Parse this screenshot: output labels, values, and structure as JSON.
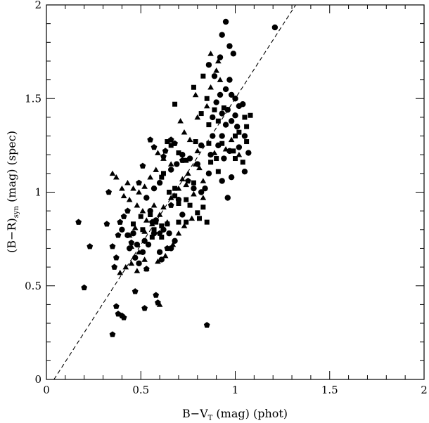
{
  "chart_data": {
    "type": "scatter",
    "xlabel": "B−V",
    "xlabel_sub": "T",
    "xlabel_rest": " (mag) (phot)",
    "ylabel": "(B−R)",
    "ylabel_sub": "syn",
    "ylabel_rest": " (mag) (spec)",
    "xlim": [
      0,
      2
    ],
    "ylim": [
      0,
      2
    ],
    "xticks": [
      0,
      0.5,
      1,
      1.5,
      2
    ],
    "xtick_labels": [
      "0",
      "0.5",
      "1",
      "1.5",
      "2"
    ],
    "yticks": [
      0,
      0.5,
      1,
      1.5,
      2
    ],
    "ytick_labels": [
      "0",
      "0.5",
      "1",
      "1.5",
      "2"
    ],
    "grid": false,
    "legend": "none",
    "fit_line": {
      "x": [
        0.04,
        1.32
      ],
      "y": [
        0.0,
        2.0
      ],
      "style": "dashed"
    },
    "series": [
      {
        "marker": "circle",
        "points": [
          [
            0.95,
            1.91
          ],
          [
            0.93,
            1.84
          ],
          [
            0.97,
            1.78
          ],
          [
            1.21,
            1.88
          ],
          [
            0.99,
            1.74
          ],
          [
            0.92,
            1.72
          ],
          [
            0.86,
            1.68
          ],
          [
            0.89,
            1.62
          ],
          [
            0.97,
            1.6
          ],
          [
            0.95,
            1.55
          ],
          [
            0.98,
            1.52
          ],
          [
            1.0,
            1.5
          ],
          [
            0.92,
            1.52
          ],
          [
            0.9,
            1.48
          ],
          [
            1.02,
            1.46
          ],
          [
            0.96,
            1.44
          ],
          [
            0.93,
            1.42
          ],
          [
            1.0,
            1.41
          ],
          [
            0.98,
            1.38
          ],
          [
            1.04,
            1.47
          ],
          [
            0.88,
            1.4
          ],
          [
            0.95,
            1.36
          ],
          [
            1.01,
            1.35
          ],
          [
            0.93,
            1.3
          ],
          [
            1.05,
            1.3
          ],
          [
            0.91,
            1.25
          ],
          [
            0.97,
            1.22
          ],
          [
            1.02,
            1.24
          ],
          [
            0.87,
            1.2
          ],
          [
            0.94,
            1.18
          ],
          [
            1.07,
            1.21
          ],
          [
            1.05,
            1.11
          ],
          [
            0.98,
            1.08
          ],
          [
            0.93,
            1.06
          ],
          [
            0.86,
            1.1
          ],
          [
            0.84,
            1.02
          ],
          [
            0.8,
            1.15
          ],
          [
            0.76,
            1.18
          ],
          [
            0.72,
            1.2
          ],
          [
            0.69,
            1.15
          ],
          [
            0.66,
            1.12
          ],
          [
            0.6,
            1.05
          ],
          [
            0.57,
            1.02
          ],
          [
            0.53,
            0.97
          ],
          [
            0.55,
            0.9
          ],
          [
            0.58,
            0.85
          ],
          [
            0.62,
            0.8
          ],
          [
            0.65,
            0.78
          ],
          [
            0.68,
            0.74
          ],
          [
            0.57,
            0.78
          ],
          [
            0.52,
            0.74
          ],
          [
            0.48,
            0.72
          ],
          [
            0.46,
            0.78
          ],
          [
            0.43,
            0.77
          ],
          [
            0.4,
            0.8
          ],
          [
            0.44,
            0.7
          ],
          [
            0.47,
            0.65
          ],
          [
            0.49,
            0.62
          ],
          [
            0.51,
            0.68
          ],
          [
            0.54,
            0.72
          ],
          [
            0.6,
            0.68
          ],
          [
            0.61,
            0.64
          ],
          [
            0.66,
            0.7
          ],
          [
            0.72,
            0.88
          ],
          [
            0.78,
            1.02
          ],
          [
            0.82,
            1.25
          ],
          [
            0.88,
            1.3
          ],
          [
            0.96,
            0.97
          ],
          [
            0.82,
            1.0
          ],
          [
            0.7,
            0.96
          ]
        ]
      },
      {
        "marker": "square",
        "points": [
          [
            0.83,
            1.62
          ],
          [
            0.85,
            1.5
          ],
          [
            0.78,
            1.56
          ],
          [
            0.82,
            1.42
          ],
          [
            0.68,
            1.47
          ],
          [
            0.89,
            1.44
          ],
          [
            0.86,
            1.36
          ],
          [
            0.91,
            1.38
          ],
          [
            1.0,
            1.3
          ],
          [
            1.02,
            1.32
          ],
          [
            0.94,
            1.45
          ],
          [
            1.08,
            1.41
          ],
          [
            1.05,
            1.4
          ],
          [
            0.93,
            1.26
          ],
          [
            0.99,
            1.22
          ],
          [
            0.9,
            1.18
          ],
          [
            0.86,
            1.26
          ],
          [
            0.79,
            1.27
          ],
          [
            0.74,
            1.17
          ],
          [
            0.7,
            1.21
          ],
          [
            0.66,
            1.25
          ],
          [
            0.64,
            1.27
          ],
          [
            0.62,
            1.1
          ],
          [
            0.61,
            1.08
          ],
          [
            0.65,
            1.0
          ],
          [
            0.68,
            1.02
          ],
          [
            0.7,
            0.94
          ],
          [
            0.74,
            0.96
          ],
          [
            0.76,
            0.93
          ],
          [
            0.8,
            0.89
          ],
          [
            0.83,
            0.92
          ],
          [
            0.85,
            0.84
          ],
          [
            0.81,
            0.86
          ],
          [
            0.74,
            0.84
          ],
          [
            0.7,
            0.84
          ],
          [
            0.64,
            0.83
          ],
          [
            0.61,
            0.82
          ],
          [
            0.58,
            0.84
          ],
          [
            0.55,
            0.88
          ],
          [
            0.5,
            0.87
          ],
          [
            0.46,
            0.83
          ],
          [
            0.51,
            0.8
          ],
          [
            0.57,
            0.8
          ],
          [
            0.61,
            0.76
          ],
          [
            0.56,
            0.76
          ],
          [
            0.68,
            0.98
          ],
          [
            0.78,
            1.05
          ],
          [
            0.87,
            1.16
          ],
          [
            0.91,
            1.11
          ],
          [
            1.04,
            1.16
          ],
          [
            1.0,
            1.18
          ],
          [
            1.06,
            1.27
          ],
          [
            1.06,
            1.35
          ]
        ]
      },
      {
        "marker": "triangle",
        "points": [
          [
            0.87,
            1.74
          ],
          [
            0.91,
            1.7
          ],
          [
            0.9,
            1.65
          ],
          [
            0.87,
            1.56
          ],
          [
            0.92,
            1.6
          ],
          [
            0.79,
            1.52
          ],
          [
            0.85,
            1.46
          ],
          [
            0.8,
            1.4
          ],
          [
            0.71,
            1.38
          ],
          [
            0.73,
            1.32
          ],
          [
            0.76,
            1.28
          ],
          [
            0.8,
            1.22
          ],
          [
            0.75,
            1.1
          ],
          [
            0.79,
            1.15
          ],
          [
            0.83,
            1.06
          ],
          [
            0.81,
            1.13
          ],
          [
            0.72,
            1.07
          ],
          [
            0.66,
            1.15
          ],
          [
            0.62,
            1.18
          ],
          [
            0.59,
            1.21
          ],
          [
            0.58,
            1.12
          ],
          [
            0.55,
            1.08
          ],
          [
            0.52,
            1.03
          ],
          [
            0.49,
            1.0
          ],
          [
            0.46,
            1.02
          ],
          [
            0.43,
            1.05
          ],
          [
            0.4,
            1.02
          ],
          [
            0.37,
            1.08
          ],
          [
            0.35,
            1.1
          ],
          [
            0.41,
            0.98
          ],
          [
            0.44,
            0.96
          ],
          [
            0.48,
            0.93
          ],
          [
            0.51,
            0.9
          ],
          [
            0.53,
            0.85
          ],
          [
            0.57,
            0.93
          ],
          [
            0.62,
            0.92
          ],
          [
            0.66,
            0.97
          ],
          [
            0.7,
            1.02
          ],
          [
            0.74,
            1.04
          ],
          [
            0.78,
            0.99
          ],
          [
            0.83,
            0.97
          ],
          [
            0.6,
            0.88
          ],
          [
            0.64,
            0.84
          ],
          [
            0.56,
            0.83
          ],
          [
            0.52,
            0.79
          ],
          [
            0.47,
            0.81
          ],
          [
            0.44,
            0.77
          ],
          [
            0.45,
            0.71
          ],
          [
            0.49,
            0.68
          ],
          [
            0.52,
            0.64
          ],
          [
            0.45,
            0.62
          ],
          [
            0.42,
            0.6
          ],
          [
            0.39,
            0.57
          ],
          [
            0.48,
            0.58
          ],
          [
            0.53,
            0.59
          ],
          [
            0.59,
            0.63
          ],
          [
            0.63,
            0.66
          ],
          [
            0.67,
            0.72
          ],
          [
            0.7,
            0.78
          ],
          [
            0.73,
            0.82
          ],
          [
            0.77,
            0.86
          ],
          [
            0.6,
            0.4
          ],
          [
            0.98,
            1.28
          ],
          [
            1.02,
            1.2
          ],
          [
            0.95,
            1.23
          ],
          [
            0.89,
            1.21
          ]
        ]
      },
      {
        "marker": "pentagon",
        "points": [
          [
            0.17,
            0.84
          ],
          [
            0.2,
            0.49
          ],
          [
            0.23,
            0.71
          ],
          [
            0.32,
            0.83
          ],
          [
            0.33,
            1.0
          ],
          [
            0.35,
            0.24
          ],
          [
            0.37,
            0.39
          ],
          [
            0.37,
            0.65
          ],
          [
            0.38,
            0.35
          ],
          [
            0.39,
            0.84
          ],
          [
            0.4,
            0.34
          ],
          [
            0.41,
            0.33
          ],
          [
            0.36,
            0.6
          ],
          [
            0.35,
            0.71
          ],
          [
            0.38,
            0.77
          ],
          [
            0.41,
            0.87
          ],
          [
            0.43,
            0.9
          ],
          [
            0.47,
            0.47
          ],
          [
            0.52,
            0.38
          ],
          [
            0.53,
            0.59
          ],
          [
            0.56,
            0.84
          ],
          [
            0.58,
            0.45
          ],
          [
            0.59,
            0.41
          ],
          [
            0.49,
            1.05
          ],
          [
            0.51,
            1.14
          ],
          [
            0.55,
            1.28
          ],
          [
            0.57,
            1.24
          ],
          [
            0.63,
            1.22
          ],
          [
            0.66,
            1.28
          ],
          [
            0.68,
            1.26
          ],
          [
            0.72,
            1.17
          ],
          [
            0.75,
            1.06
          ],
          [
            0.6,
            0.78
          ],
          [
            0.64,
            0.7
          ],
          [
            0.85,
            0.29
          ],
          [
            0.66,
            0.93
          ],
          [
            0.45,
            0.73
          ],
          [
            0.62,
            1.19
          ]
        ]
      }
    ]
  }
}
